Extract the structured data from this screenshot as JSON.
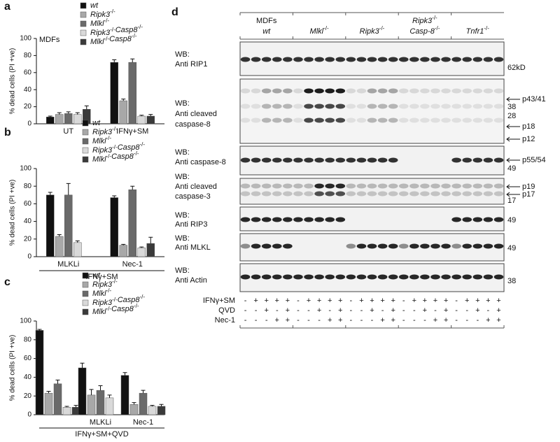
{
  "chart_data": [
    {
      "type": "bar",
      "panel": "a",
      "annotation": "MDFs",
      "ylabel": "% dead cells (PI +ve)",
      "categories": [
        "UT",
        "IFNγ+SM"
      ],
      "ylim": [
        0,
        100
      ],
      "yticks": [
        0,
        20,
        40,
        60,
        80,
        100
      ],
      "series": [
        {
          "name": "wt",
          "color": "#111111",
          "values": [
            8,
            72
          ],
          "errors": [
            1,
            3
          ]
        },
        {
          "name": "Ripk3-/-",
          "color": "#a8a8a8",
          "values": [
            11,
            27
          ],
          "errors": [
            2,
            2
          ]
        },
        {
          "name": "Mlkl-/-",
          "color": "#6a6a6a",
          "values": [
            12,
            72
          ],
          "errors": [
            2,
            4
          ]
        },
        {
          "name": "Ripk3-/-Casp8-/-",
          "color": "#d9d9d9",
          "values": [
            11,
            9
          ],
          "errors": [
            2,
            1
          ]
        },
        {
          "name": "Mlkl-/-Casp8-/-",
          "color": "#3a3a3a",
          "values": [
            17,
            9
          ],
          "errors": [
            4,
            2
          ]
        }
      ]
    },
    {
      "type": "bar",
      "panel": "b",
      "ylabel": "% dead cells (PI +ve)",
      "xlabel": "IFNγ+SM",
      "categories": [
        "MLKLi",
        "Nec-1"
      ],
      "ylim": [
        0,
        100
      ],
      "yticks": [
        0,
        20,
        40,
        60,
        80,
        100
      ],
      "series": [
        {
          "name": "wt",
          "color": "#111111",
          "values": [
            70,
            67
          ],
          "errors": [
            3,
            2
          ]
        },
        {
          "name": "Ripk3-/-",
          "color": "#a8a8a8",
          "values": [
            23,
            13
          ],
          "errors": [
            2,
            1
          ]
        },
        {
          "name": "Mlkl-/-",
          "color": "#6a6a6a",
          "values": [
            70,
            76
          ],
          "errors": [
            13,
            4
          ]
        },
        {
          "name": "Ripk3-/-Casp8-/-",
          "color": "#d9d9d9",
          "values": [
            16,
            10
          ],
          "errors": [
            2,
            1
          ]
        },
        {
          "name": "Mlkl-/-Casp8-/-",
          "color": "#3a3a3a",
          "values": [
            null,
            15
          ],
          "errors": [
            null,
            7
          ]
        }
      ]
    },
    {
      "type": "bar",
      "panel": "c",
      "ylabel": "% dead cells (PI +ve)",
      "xlabel": "IFNγ+SM+QVD",
      "categories": [
        null,
        "MLKLi",
        "Nec-1"
      ],
      "ylim": [
        0,
        100
      ],
      "yticks": [
        0,
        20,
        40,
        60,
        80,
        100
      ],
      "series": [
        {
          "name": "wt",
          "color": "#111111",
          "values": [
            90,
            50,
            42
          ],
          "errors": [
            1,
            5,
            3
          ]
        },
        {
          "name": "Ripk3-/-",
          "color": "#a8a8a8",
          "values": [
            23,
            21,
            11
          ],
          "errors": [
            2,
            6,
            2
          ]
        },
        {
          "name": "Mlkl-/-",
          "color": "#6a6a6a",
          "values": [
            33,
            26,
            23
          ],
          "errors": [
            4,
            5,
            3
          ]
        },
        {
          "name": "Ripk3-/-Casp8-/-",
          "color": "#d9d9d9",
          "values": [
            8,
            18,
            9
          ],
          "errors": [
            1,
            3,
            1
          ]
        },
        {
          "name": "Mlkl-/-Casp8-/-",
          "color": "#3a3a3a",
          "values": [
            8,
            null,
            9
          ],
          "errors": [
            2,
            null,
            2
          ]
        }
      ]
    }
  ],
  "blot": {
    "panel": "d",
    "groups": [
      [
        "MDFs",
        "wt"
      ],
      [
        "Mlkl-/-"
      ],
      [
        "Ripk3-/-"
      ],
      [
        "Ripk3-/-",
        "Casp-8-/-"
      ],
      [
        "Tnfr1-/-"
      ]
    ],
    "rows": [
      {
        "label": [
          "WB:",
          "Anti RIP1"
        ],
        "markers": [
          {
            "text": "62kD"
          }
        ]
      },
      {
        "label": [
          "WB:",
          "Anti cleaved",
          "caspase-8"
        ],
        "markers": [
          {
            "text": "p43/41",
            "arrow": true
          },
          {
            "text": "38"
          },
          {
            "text": "28"
          },
          {
            "text": "p18",
            "arrow": true
          },
          {
            "text": "p12",
            "arrow": true
          }
        ]
      },
      {
        "label": [
          "WB:",
          "Anti caspase-8"
        ],
        "markers": [
          {
            "text": "p55/54",
            "arrow": true
          },
          {
            "text": "49"
          }
        ]
      },
      {
        "label": [
          "WB:",
          "Anti cleaved",
          "caspase-3"
        ],
        "markers": [
          {
            "text": "p19",
            "arrow": true
          },
          {
            "text": "p17",
            "arrow": true
          },
          {
            "text": "17"
          }
        ]
      },
      {
        "label": [
          "WB:",
          "Anti RIP3"
        ],
        "markers": [
          {
            "text": "49"
          }
        ]
      },
      {
        "label": [
          "WB:",
          "Anti MLKL"
        ],
        "markers": [
          {
            "text": "49"
          }
        ]
      },
      {
        "label": [
          "WB:",
          "Anti Actin"
        ],
        "markers": [
          {
            "text": "38"
          }
        ]
      }
    ],
    "conditions": [
      {
        "label": "IFNγ+SM",
        "signs": [
          "-",
          "+",
          "+",
          "+",
          "+",
          "-",
          "+",
          "+",
          "+",
          "+",
          "-",
          "+",
          "+",
          "+",
          "+",
          "-",
          "+",
          "+",
          "+",
          "+",
          "-",
          "+",
          "+",
          "+",
          "+"
        ]
      },
      {
        "label": "QVD",
        "signs": [
          "-",
          "-",
          "+",
          "-",
          "+",
          "-",
          "-",
          "+",
          "-",
          "+",
          "-",
          "-",
          "+",
          "-",
          "+",
          "-",
          "-",
          "+",
          "-",
          "+",
          "-",
          "-",
          "+",
          "-",
          "+"
        ]
      },
      {
        "label": "Nec-1",
        "signs": [
          "-",
          "-",
          "-",
          "+",
          "+",
          "-",
          "-",
          "-",
          "+",
          "+",
          "-",
          "-",
          "-",
          "+",
          "+",
          "-",
          "-",
          "-",
          "+",
          "+",
          "-",
          "-",
          "-",
          "+",
          "+"
        ]
      }
    ]
  }
}
